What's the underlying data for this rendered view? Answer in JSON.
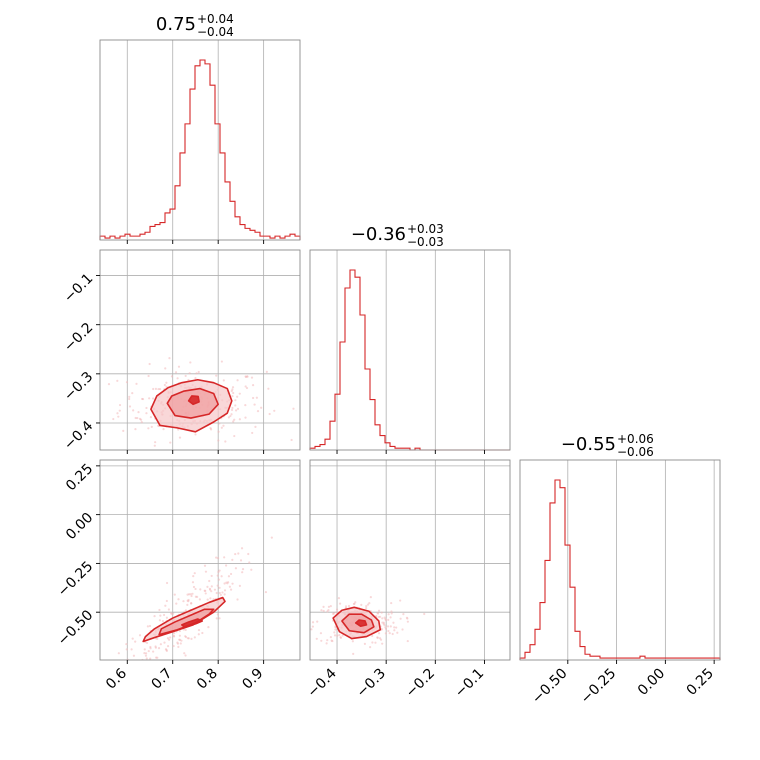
{
  "chart_data": {
    "type": "corner",
    "color": "#d62728",
    "fill_color": "#f4a9ab",
    "grid": true,
    "params": [
      {
        "title_value": "0.75",
        "title_plus": "+0.04",
        "title_minus": "−0.04",
        "range": [
          0.54,
          0.98
        ],
        "ticks": [
          0.6,
          0.7,
          0.8,
          0.9
        ],
        "tick_labels": [
          "0.6",
          "0.7",
          "0.8",
          "0.9"
        ]
      },
      {
        "title_value": "−0.36",
        "title_plus": "+0.03",
        "title_minus": "−0.03",
        "range": [
          -0.455,
          -0.048
        ],
        "ticks": [
          -0.4,
          -0.3,
          -0.2,
          -0.1
        ],
        "tick_labels": [
          "−0.4",
          "−0.3",
          "−0.2",
          "−0.1"
        ]
      },
      {
        "title_value": "−0.55",
        "title_plus": "+0.06",
        "title_minus": "−0.06",
        "range": [
          -0.745,
          0.28
        ],
        "ticks": [
          -0.5,
          -0.25,
          0.0,
          0.25
        ],
        "tick_labels": [
          "−0.50",
          "−0.25",
          "0.00",
          "0.25"
        ]
      }
    ],
    "histograms": [
      {
        "param": 0,
        "edges": [
          0.54,
          0.98
        ],
        "counts": [
          2,
          1,
          2,
          1,
          2,
          3,
          2,
          2,
          3,
          4,
          7,
          8,
          9,
          14,
          16,
          28,
          45,
          60,
          78,
          90,
          93,
          91,
          80,
          60,
          45,
          30,
          20,
          12,
          8,
          6,
          5,
          4,
          2,
          2,
          1,
          2,
          1,
          2,
          3,
          2
        ]
      },
      {
        "param": 1,
        "edges": [
          -0.455,
          -0.048
        ],
        "counts": [
          1,
          2,
          3,
          6,
          16,
          31,
          60,
          90,
          100,
          96,
          75,
          45,
          28,
          14,
          8,
          4,
          2,
          1,
          1,
          1,
          0,
          1,
          0,
          0,
          0,
          0,
          0,
          0,
          0,
          0,
          0,
          0,
          0,
          0,
          0,
          0,
          0,
          0,
          0,
          0
        ]
      },
      {
        "param": 2,
        "edges": [
          -0.745,
          0.28
        ],
        "counts": [
          1,
          4,
          8,
          16,
          30,
          52,
          82,
          94,
          90,
          60,
          38,
          15,
          7,
          3,
          2,
          2,
          1,
          1,
          1,
          1,
          1,
          1,
          1,
          1,
          2,
          1,
          1,
          1,
          1,
          1,
          1,
          1,
          1,
          1,
          1,
          1,
          1,
          1,
          1,
          1
        ]
      }
    ],
    "pairs": [
      {
        "x_param": 0,
        "y_param": 1,
        "contours": [
          {
            "level": "outer",
            "points": [
              [
                0.652,
                -0.372
              ],
              [
                0.672,
                -0.405
              ],
              [
                0.71,
                -0.41
              ],
              [
                0.75,
                -0.418
              ],
              [
                0.79,
                -0.398
              ],
              [
                0.82,
                -0.38
              ],
              [
                0.83,
                -0.355
              ],
              [
                0.82,
                -0.33
              ],
              [
                0.79,
                -0.318
              ],
              [
                0.755,
                -0.312
              ],
              [
                0.72,
                -0.318
              ],
              [
                0.69,
                -0.328
              ],
              [
                0.665,
                -0.345
              ]
            ]
          },
          {
            "level": "middle",
            "points": [
              [
                0.688,
                -0.36
              ],
              [
                0.705,
                -0.385
              ],
              [
                0.74,
                -0.39
              ],
              [
                0.78,
                -0.382
              ],
              [
                0.8,
                -0.362
              ],
              [
                0.79,
                -0.34
              ],
              [
                0.76,
                -0.33
              ],
              [
                0.725,
                -0.335
              ],
              [
                0.698,
                -0.345
              ]
            ]
          },
          {
            "level": "inner",
            "points": [
              [
                0.735,
                -0.355
              ],
              [
                0.745,
                -0.362
              ],
              [
                0.758,
                -0.357
              ],
              [
                0.756,
                -0.346
              ],
              [
                0.742,
                -0.345
              ]
            ]
          }
        ]
      },
      {
        "x_param": 0,
        "y_param": 2,
        "contours": [
          {
            "level": "outer",
            "points": [
              [
                0.635,
                -0.65
              ],
              [
                0.66,
                -0.63
              ],
              [
                0.7,
                -0.6
              ],
              [
                0.745,
                -0.565
              ],
              [
                0.79,
                -0.5
              ],
              [
                0.815,
                -0.445
              ],
              [
                0.81,
                -0.425
              ],
              [
                0.78,
                -0.45
              ],
              [
                0.74,
                -0.49
              ],
              [
                0.7,
                -0.53
              ],
              [
                0.66,
                -0.585
              ],
              [
                0.64,
                -0.625
              ]
            ]
          },
          {
            "level": "middle",
            "points": [
              [
                0.67,
                -0.615
              ],
              [
                0.71,
                -0.59
              ],
              [
                0.75,
                -0.555
              ],
              [
                0.78,
                -0.51
              ],
              [
                0.79,
                -0.485
              ],
              [
                0.77,
                -0.485
              ],
              [
                0.74,
                -0.515
              ],
              [
                0.705,
                -0.55
              ],
              [
                0.675,
                -0.585
              ]
            ]
          },
          {
            "level": "inner",
            "points": [
              [
                0.725,
                -0.575
              ],
              [
                0.75,
                -0.56
              ],
              [
                0.765,
                -0.545
              ],
              [
                0.755,
                -0.535
              ],
              [
                0.735,
                -0.55
              ],
              [
                0.72,
                -0.565
              ]
            ]
          }
        ]
      },
      {
        "x_param": 1,
        "y_param": 2,
        "contours": [
          {
            "level": "outer",
            "points": [
              [
                -0.408,
                -0.53
              ],
              [
                -0.395,
                -0.6
              ],
              [
                -0.37,
                -0.635
              ],
              [
                -0.34,
                -0.625
              ],
              [
                -0.312,
                -0.59
              ],
              [
                -0.315,
                -0.545
              ],
              [
                -0.335,
                -0.495
              ],
              [
                -0.365,
                -0.475
              ],
              [
                -0.39,
                -0.49
              ]
            ]
          },
          {
            "level": "middle",
            "points": [
              [
                -0.39,
                -0.545
              ],
              [
                -0.375,
                -0.595
              ],
              [
                -0.345,
                -0.605
              ],
              [
                -0.325,
                -0.575
              ],
              [
                -0.33,
                -0.54
              ],
              [
                -0.35,
                -0.51
              ],
              [
                -0.375,
                -0.51
              ]
            ]
          },
          {
            "level": "inner",
            "points": [
              [
                -0.362,
                -0.555
              ],
              [
                -0.352,
                -0.572
              ],
              [
                -0.34,
                -0.565
              ],
              [
                -0.343,
                -0.545
              ],
              [
                -0.355,
                -0.54
              ]
            ]
          }
        ]
      }
    ]
  }
}
